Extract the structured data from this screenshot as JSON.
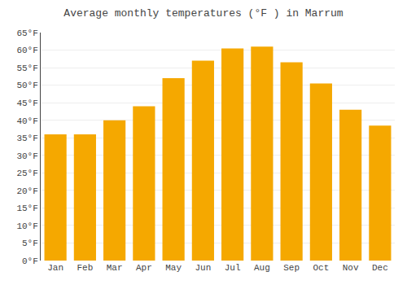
{
  "chart_data": {
    "type": "bar",
    "title": "Average monthly temperatures (°F ) in Marrum",
    "categories": [
      "Jan",
      "Feb",
      "Mar",
      "Apr",
      "May",
      "Jun",
      "Jul",
      "Aug",
      "Sep",
      "Oct",
      "Nov",
      "Dec"
    ],
    "values": [
      36,
      36,
      40,
      44,
      52,
      57,
      60.5,
      61,
      56.5,
      50.5,
      43,
      38.5
    ],
    "color": "#F5A800",
    "ylim": [
      0,
      65
    ],
    "yticks": [
      {
        "value": 0,
        "label": "0°F"
      },
      {
        "value": 5,
        "label": "5°F"
      },
      {
        "value": 10,
        "label": "10°F"
      },
      {
        "value": 15,
        "label": "15°F"
      },
      {
        "value": 20,
        "label": "20°F"
      },
      {
        "value": 25,
        "label": "25°F"
      },
      {
        "value": 30,
        "label": "30°F"
      },
      {
        "value": 35,
        "label": "35°F"
      },
      {
        "value": 40,
        "label": "40°F"
      },
      {
        "value": 45,
        "label": "45°F"
      },
      {
        "value": 50,
        "label": "50°F"
      },
      {
        "value": 55,
        "label": "55°F"
      },
      {
        "value": 60,
        "label": "60°F"
      },
      {
        "value": 65,
        "label": "65°F"
      }
    ],
    "grid": true
  }
}
